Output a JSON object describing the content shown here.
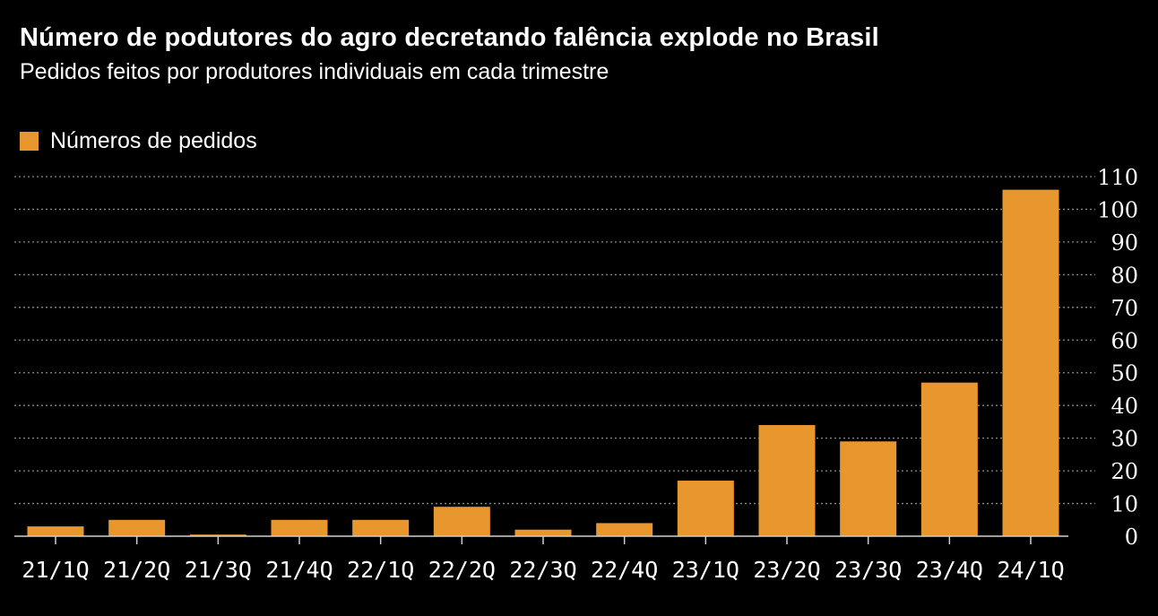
{
  "title": "Número de podutores do agro decretando falência explode no Brasil",
  "subtitle": "Pedidos feitos por produtores individuais em cada trimestre",
  "colors": {
    "background": "#000000",
    "bar": "#E8962E",
    "gridline": "#8a8a8a",
    "text": "#ffffff"
  },
  "chart_data": {
    "type": "bar",
    "categories": [
      "21/1Q",
      "21/2Q",
      "21/3Q",
      "21/4Q",
      "22/1Q",
      "22/2Q",
      "22/3Q",
      "22/4Q",
      "23/1Q",
      "23/2Q",
      "23/3Q",
      "23/4Q",
      "24/1Q"
    ],
    "series": [
      {
        "name": "Números de pedidos",
        "values": [
          3,
          5,
          0.5,
          5,
          5,
          9,
          2,
          4,
          17,
          34,
          29,
          47,
          106
        ]
      }
    ],
    "yticks": [
      0,
      10,
      20,
      30,
      40,
      50,
      60,
      70,
      80,
      90,
      100,
      110
    ],
    "ylim": [
      0,
      110
    ],
    "grid": true,
    "y_axis_side": "right",
    "legend_position": "top-left"
  }
}
